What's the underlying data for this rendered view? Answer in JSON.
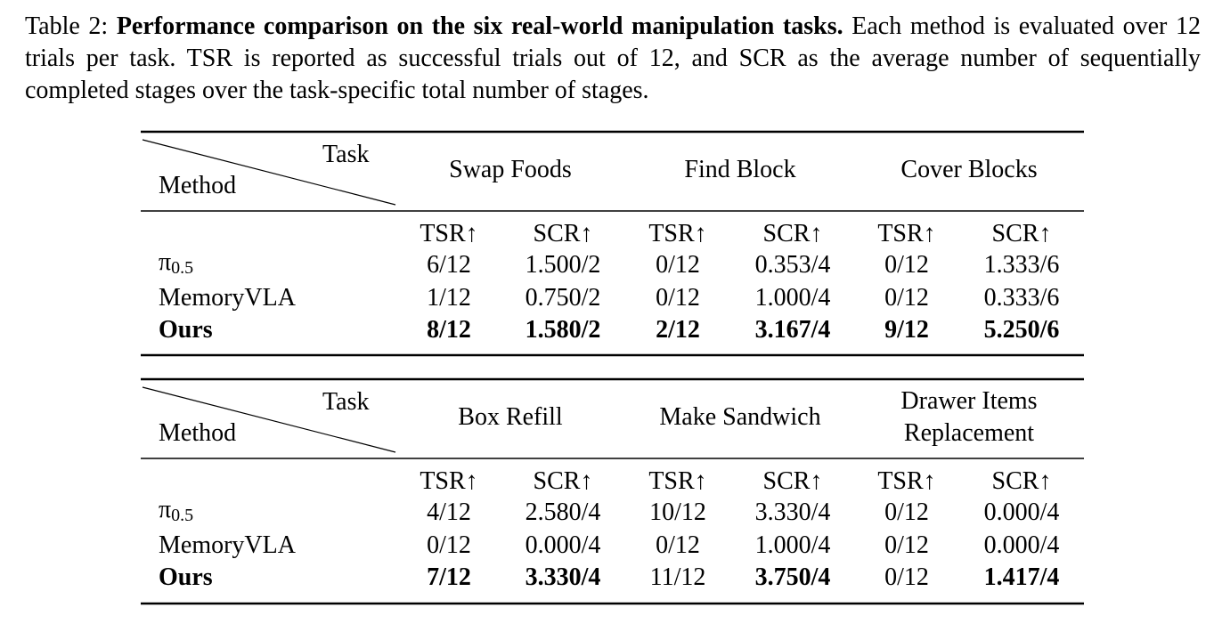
{
  "caption": {
    "label": "Table 2:",
    "bold": "Performance comparison on the six real-world manipulation tasks.",
    "text": "Each method is evaluated over 12 trials per task. TSR is reported as successful trials out of 12, and SCR as the average number of sequentially completed stages over the task-specific total number of stages."
  },
  "tables": [
    {
      "corner_top": "Task",
      "corner_bottom": "Method",
      "tasks": [
        "Swap Foods",
        "Find Block",
        "Cover Blocks"
      ],
      "metrics": [
        "TSR↑",
        "SCR↑"
      ],
      "rows": [
        {
          "method": "π",
          "subscript": "0.5",
          "bold_method": false,
          "cells": [
            "6/12",
            "1.500/2",
            "0/12",
            "0.353/4",
            "0/12",
            "1.333/6"
          ],
          "bold": [
            false,
            false,
            false,
            false,
            false,
            false
          ]
        },
        {
          "method": "MemoryVLA",
          "bold_method": false,
          "cells": [
            "1/12",
            "0.750/2",
            "0/12",
            "1.000/4",
            "0/12",
            "0.333/6"
          ],
          "bold": [
            false,
            false,
            false,
            false,
            false,
            false
          ]
        },
        {
          "method": "Ours",
          "bold_method": true,
          "cells": [
            "8/12",
            "1.580/2",
            "2/12",
            "3.167/4",
            "9/12",
            "5.250/6"
          ],
          "bold": [
            true,
            true,
            true,
            true,
            true,
            true
          ]
        }
      ]
    },
    {
      "corner_top": "Task",
      "corner_bottom": "Method",
      "tasks": [
        "Box Refill",
        "Make Sandwich",
        "Drawer Items Replacement"
      ],
      "metrics": [
        "TSR↑",
        "SCR↑"
      ],
      "rows": [
        {
          "method": "π",
          "subscript": "0.5",
          "bold_method": false,
          "cells": [
            "4/12",
            "2.580/4",
            "10/12",
            "3.330/4",
            "0/12",
            "0.000/4"
          ],
          "bold": [
            false,
            false,
            false,
            false,
            false,
            false
          ]
        },
        {
          "method": "MemoryVLA",
          "bold_method": false,
          "cells": [
            "0/12",
            "0.000/4",
            "0/12",
            "1.000/4",
            "0/12",
            "0.000/4"
          ],
          "bold": [
            false,
            false,
            false,
            false,
            false,
            false
          ]
        },
        {
          "method": "Ours",
          "bold_method": true,
          "cells": [
            "7/12",
            "3.330/4",
            "11/12",
            "3.750/4",
            "0/12",
            "1.417/4"
          ],
          "bold": [
            true,
            true,
            false,
            true,
            false,
            true
          ]
        }
      ]
    }
  ]
}
